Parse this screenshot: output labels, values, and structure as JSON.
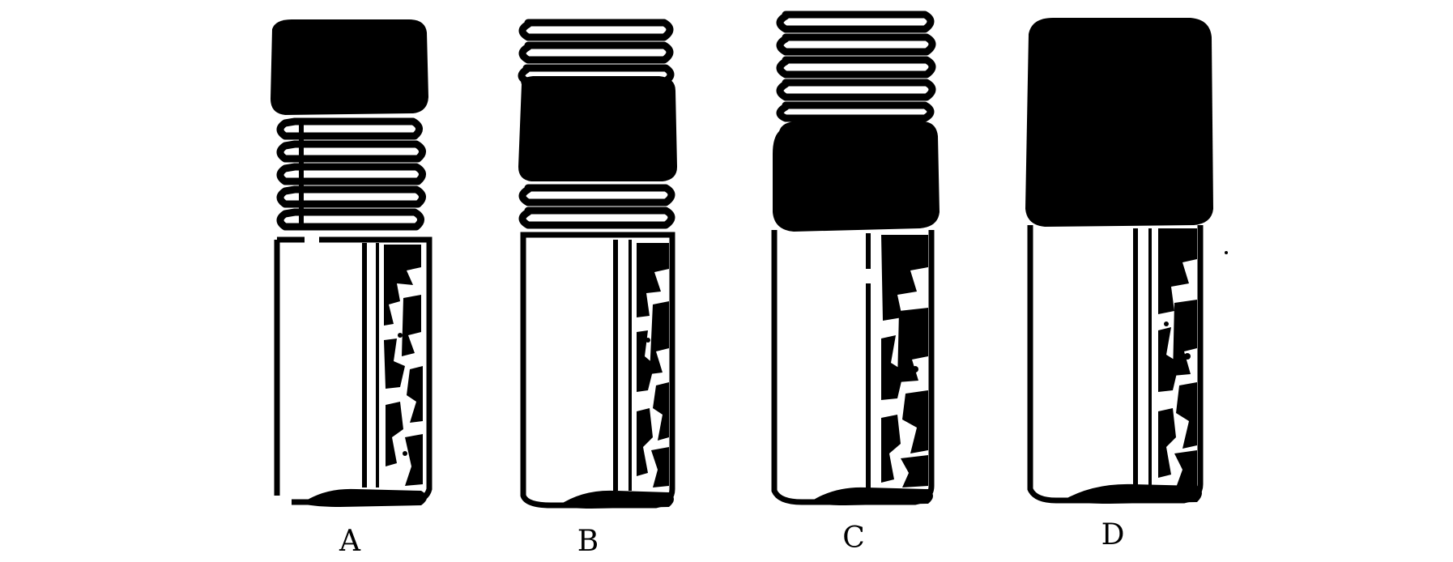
{
  "figure": {
    "ink_color": "#000000",
    "paper_color": "#ffffff",
    "parts": [
      {
        "label": "A",
        "threads": "middle",
        "dark_band": "top"
      },
      {
        "label": "B",
        "threads": "top and bottom",
        "dark_band": "middle"
      },
      {
        "label": "C",
        "threads": "top",
        "dark_band": "middle"
      },
      {
        "label": "D",
        "threads": "none",
        "dark_band": "top"
      }
    ]
  }
}
